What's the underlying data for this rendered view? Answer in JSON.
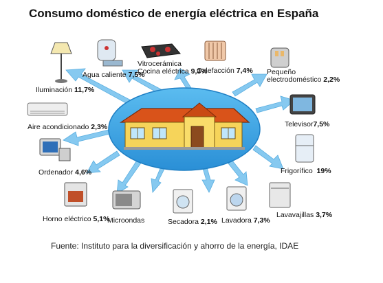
{
  "title": "Consumo doméstico de energía eléctrica en España",
  "source": "Fuente: Instituto para la diversificación y ahorro de la energía, IDAE",
  "items": [
    {
      "key": "iluminacion",
      "label": "Iluminación",
      "value": "11,7%"
    },
    {
      "key": "agua",
      "label": "Agua caliente",
      "value": "7,5%"
    },
    {
      "key": "vitro",
      "label": "Vitrocerámica",
      "label2": "Cocina eléctrica",
      "value": "9,3%"
    },
    {
      "key": "calefaccion",
      "label": "Calefacción",
      "value": "7,4%"
    },
    {
      "key": "pequeno",
      "label": "Pequeño",
      "label2": "electrodoméstico",
      "value": "2,2%"
    },
    {
      "key": "aire",
      "label": "Aire acondicionado",
      "value": "2,3%"
    },
    {
      "key": "televisor",
      "label": "Televisor",
      "value": "7,5%"
    },
    {
      "key": "ordenador",
      "label": "Ordenador",
      "value": "4,6%"
    },
    {
      "key": "frigorifico",
      "label": "Frigorífico",
      "value": "19%"
    },
    {
      "key": "horno",
      "label": "Horno eléctrico",
      "value": "5,1%"
    },
    {
      "key": "microondas",
      "label": "Microondas"
    },
    {
      "key": "secadora",
      "label": "Secadora",
      "value": "2,1%"
    },
    {
      "key": "lavadora",
      "label": "Lavadora",
      "value": "7,3%"
    },
    {
      "key": "lavavajillas",
      "label": "Lavavajillas",
      "value": "3,7%"
    }
  ],
  "colors": {
    "ellipse": "#3ea8e6",
    "arrow": "#7ec5ef",
    "wall": "#f5d35c",
    "roof": "#e0601e"
  }
}
